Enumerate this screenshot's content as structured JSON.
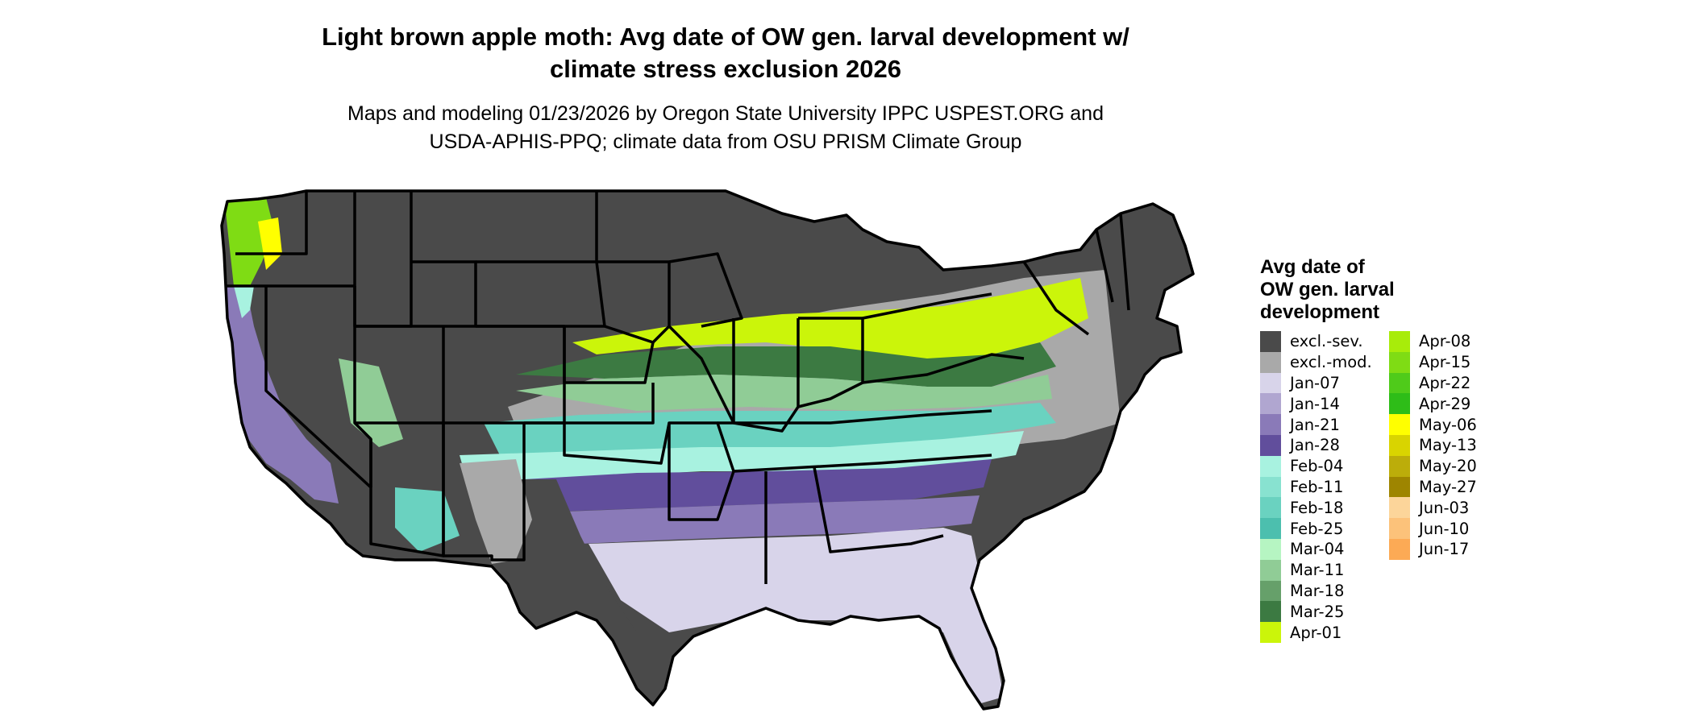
{
  "title_lines": [
    "Light brown apple moth: Avg date of OW gen. larval development w/",
    "climate stress exclusion 2026"
  ],
  "subtitle_lines": [
    "Maps and modeling 01/23/2026 by Oregon State University IPPC USPEST.ORG and",
    "USDA-APHIS-PPQ; climate data from OSU PRISM Climate Group"
  ],
  "legend": {
    "title_lines": [
      "Avg date of",
      "OW gen. larval",
      "development"
    ],
    "column1": [
      {
        "label": "excl.-sev.",
        "color": "#4a4a4a"
      },
      {
        "label": "excl.-mod.",
        "color": "#a9a9a9"
      },
      {
        "label": "Jan-07",
        "color": "#d8d4ea"
      },
      {
        "label": "Jan-14",
        "color": "#b0a6d0"
      },
      {
        "label": "Jan-21",
        "color": "#8a7ab8"
      },
      {
        "label": "Jan-28",
        "color": "#614e9c"
      },
      {
        "label": "Feb-04",
        "color": "#a8f2e0"
      },
      {
        "label": "Feb-11",
        "color": "#88e2d0"
      },
      {
        "label": "Feb-18",
        "color": "#6ad2c0"
      },
      {
        "label": "Feb-25",
        "color": "#4cbfae"
      },
      {
        "label": "Mar-04",
        "color": "#b6f5c2"
      },
      {
        "label": "Mar-11",
        "color": "#90cc96"
      },
      {
        "label": "Mar-18",
        "color": "#66a06a"
      },
      {
        "label": "Mar-25",
        "color": "#3c7a42"
      },
      {
        "label": "Apr-01",
        "color": "#cbf50a"
      }
    ],
    "column2": [
      {
        "label": "Apr-08",
        "color": "#a8ec0a"
      },
      {
        "label": "Apr-15",
        "color": "#7fdc14"
      },
      {
        "label": "Apr-22",
        "color": "#4fcb1a"
      },
      {
        "label": "Apr-29",
        "color": "#2ebd18"
      },
      {
        "label": "May-06",
        "color": "#ffff00"
      },
      {
        "label": "May-13",
        "color": "#d9d400"
      },
      {
        "label": "May-20",
        "color": "#bcad0a"
      },
      {
        "label": "May-27",
        "color": "#9e8500"
      },
      {
        "label": "Jun-03",
        "color": "#fcd59a"
      },
      {
        "label": "Jun-10",
        "color": "#fcc27a"
      },
      {
        "label": "Jun-17",
        "color": "#fcaa55"
      }
    ]
  }
}
